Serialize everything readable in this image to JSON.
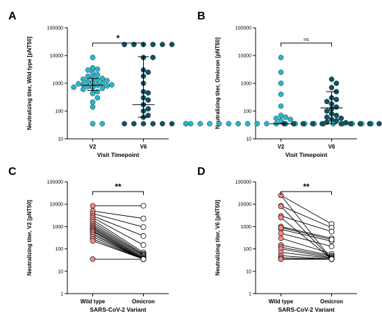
{
  "chart_data": [
    {
      "panel": "A",
      "type": "scatter",
      "ylabel": "Neutralizing titer, Wild type [pNT50]",
      "xlabel": "Visit Timepoint",
      "categories": [
        "V2",
        "V6"
      ],
      "yscale": "log",
      "ylim": [
        10,
        100000
      ],
      "yticks": [
        "10",
        "100",
        "1000",
        "10000",
        "100000"
      ],
      "colors": [
        "#2bb5c8",
        "#14515e"
      ],
      "series": [
        {
          "name": "V2",
          "values": [
            8500,
            3600,
            3200,
            3000,
            2400,
            2000,
            1800,
            1600,
            1500,
            1400,
            1300,
            1250,
            1150,
            1050,
            1000,
            950,
            900,
            880,
            850,
            800,
            760,
            720,
            700,
            650,
            600,
            500,
            430,
            300,
            210,
            140,
            35,
            35
          ]
        },
        {
          "name": "V6",
          "values": [
            25000,
            25000,
            25000,
            25000,
            25000,
            25000,
            8500,
            8500,
            3000,
            2500,
            1800,
            1000,
            500,
            450,
            300,
            250,
            170,
            120,
            100,
            70,
            60,
            35,
            35,
            35,
            35,
            35,
            35
          ]
        }
      ],
      "stats": [
        {
          "median": 850,
          "iqr": [
            550,
            1500
          ]
        },
        {
          "median": 170,
          "iqr": [
            60,
            9000
          ]
        }
      ],
      "annotation": "*"
    },
    {
      "panel": "B",
      "type": "scatter",
      "ylabel": "Neutralizing titer, Omicron [pNT50]",
      "xlabel": "Visit Timepoint",
      "categories": [
        "V2",
        "V6"
      ],
      "yscale": "log",
      "ylim": [
        10,
        100000
      ],
      "yticks": [
        "10",
        "100",
        "1000",
        "10000",
        "100000"
      ],
      "colors": [
        "#2bb5c8",
        "#14515e"
      ],
      "series": [
        {
          "name": "V2",
          "values": [
            8500,
            2500,
            1000,
            400,
            150,
            70,
            60,
            55,
            50,
            45,
            35,
            35,
            35,
            35,
            35,
            35,
            35,
            35,
            35,
            35,
            35,
            35,
            35,
            35,
            35,
            35,
            35,
            35,
            35,
            35,
            35,
            35
          ]
        },
        {
          "name": "V6",
          "values": [
            1400,
            1000,
            700,
            500,
            300,
            260,
            220,
            180,
            140,
            120,
            100,
            80,
            70,
            60,
            55,
            50,
            45,
            40,
            38,
            35,
            35,
            35,
            35,
            35,
            35,
            35,
            35,
            35,
            35,
            35
          ]
        }
      ],
      "stats": [
        {
          "median": 35,
          "iqr": [
            35,
            35
          ]
        },
        {
          "median": 130,
          "iqr": [
            35,
            500
          ]
        }
      ],
      "annotation": "ns"
    },
    {
      "panel": "C",
      "type": "line",
      "ylabel": "Neutralizing titer, V2 [pNT50]",
      "xlabel": "SARS-CoV-2 Variant",
      "categories": [
        "Wild type",
        "Omicron"
      ],
      "yscale": "log",
      "ylim": [
        1,
        100000
      ],
      "yticks": [
        "1",
        "10",
        "100",
        "1000",
        "10000",
        "100000"
      ],
      "pairs": [
        [
          8500,
          8500
        ],
        [
          5000,
          2300
        ],
        [
          3800,
          950
        ],
        [
          3000,
          380
        ],
        [
          2500,
          150
        ],
        [
          2000,
          70
        ],
        [
          1600,
          60
        ],
        [
          1300,
          55
        ],
        [
          1100,
          50
        ],
        [
          950,
          45
        ],
        [
          850,
          40
        ],
        [
          750,
          38
        ],
        [
          650,
          35
        ],
        [
          600,
          35
        ],
        [
          500,
          35
        ],
        [
          430,
          35
        ],
        [
          350,
          35
        ],
        [
          280,
          35
        ],
        [
          230,
          35
        ],
        [
          35,
          35
        ]
      ],
      "annotation": "**"
    },
    {
      "panel": "D",
      "type": "line",
      "ylabel": "Neutralizing titer, V6 [pNT50]",
      "xlabel": "SARS-CoV-2 Variant",
      "categories": [
        "Wild type",
        "Omicron"
      ],
      "yscale": "log",
      "ylim": [
        1,
        100000
      ],
      "yticks": [
        "1",
        "10",
        "100",
        "1000",
        "10000",
        "100000"
      ],
      "pairs": [
        [
          25000,
          1300
        ],
        [
          8500,
          900
        ],
        [
          3000,
          600
        ],
        [
          1000,
          300
        ],
        [
          750,
          220
        ],
        [
          500,
          130
        ],
        [
          300,
          60
        ],
        [
          150,
          50
        ],
        [
          120,
          45
        ],
        [
          100,
          40
        ],
        [
          70,
          38
        ],
        [
          50,
          35
        ],
        [
          40,
          35
        ],
        [
          35,
          35
        ],
        [
          35,
          35
        ],
        [
          35,
          35
        ],
        [
          25000,
          35
        ],
        [
          8000,
          35
        ],
        [
          2500,
          35
        ],
        [
          900,
          260
        ]
      ],
      "annotation": "**"
    }
  ]
}
